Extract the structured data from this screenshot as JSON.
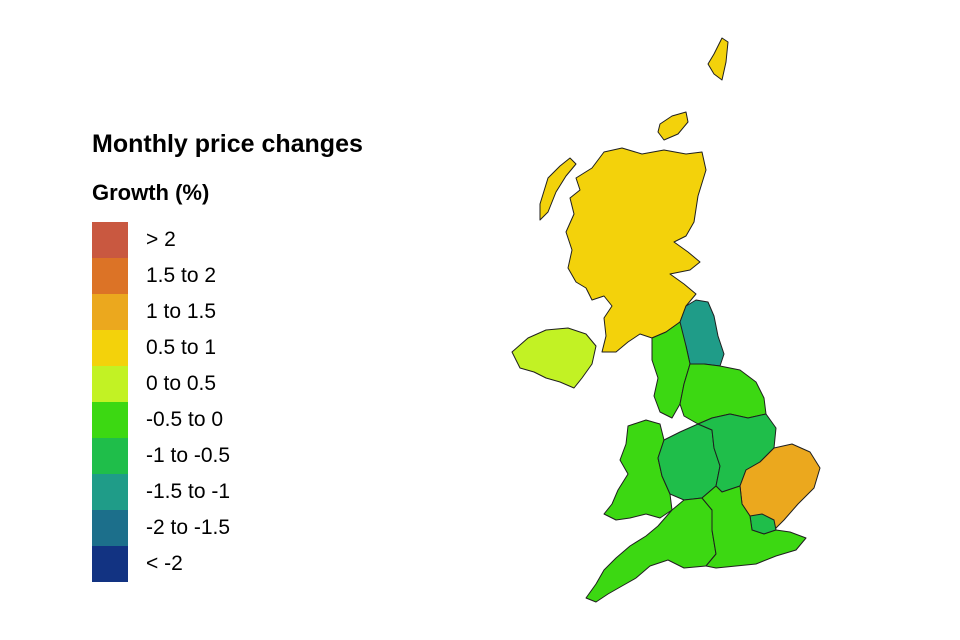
{
  "legend": {
    "title": "Monthly price changes",
    "subtitle": "Growth (%)",
    "items": [
      {
        "label": "> 2",
        "color": "#c95840"
      },
      {
        "label": "1.5 to 2",
        "color": "#dc7326"
      },
      {
        "label": "1 to 1.5",
        "color": "#eba81e"
      },
      {
        "label": "0.5 to 1",
        "color": "#f3d20b"
      },
      {
        "label": "0 to 0.5",
        "color": "#c2f224"
      },
      {
        "label": "-0.5 to 0",
        "color": "#3cd812"
      },
      {
        "label": "-1 to -0.5",
        "color": "#1fbe4a"
      },
      {
        "label": "-1.5 to -1",
        "color": "#1f9c88"
      },
      {
        "label": "-2 to -1.5",
        "color": "#1c6f8b"
      },
      {
        "label": "< -2",
        "color": "#123382"
      }
    ]
  },
  "regions": [
    {
      "name": "Scotland",
      "band": "0.5 to 1",
      "color": "#f3d20b"
    },
    {
      "name": "Northern Ireland",
      "band": "0 to 0.5",
      "color": "#c2f224"
    },
    {
      "name": "North East",
      "band": "-1.5 to -1",
      "color": "#1f9c88"
    },
    {
      "name": "North West",
      "band": "-0.5 to 0",
      "color": "#3cd812"
    },
    {
      "name": "Yorkshire and The Humber",
      "band": "-0.5 to 0",
      "color": "#3cd812"
    },
    {
      "name": "Wales",
      "band": "-0.5 to 0",
      "color": "#3cd812"
    },
    {
      "name": "West Midlands",
      "band": "-1 to -0.5",
      "color": "#1fbe4a"
    },
    {
      "name": "East Midlands",
      "band": "-1 to -0.5",
      "color": "#1fbe4a"
    },
    {
      "name": "East of England",
      "band": "1 to 1.5",
      "color": "#eba81e"
    },
    {
      "name": "London",
      "band": "-1 to -0.5",
      "color": "#1fbe4a"
    },
    {
      "name": "South West",
      "band": "-0.5 to 0",
      "color": "#3cd812"
    },
    {
      "name": "South East",
      "band": "-0.5 to 0",
      "color": "#3cd812"
    }
  ]
}
